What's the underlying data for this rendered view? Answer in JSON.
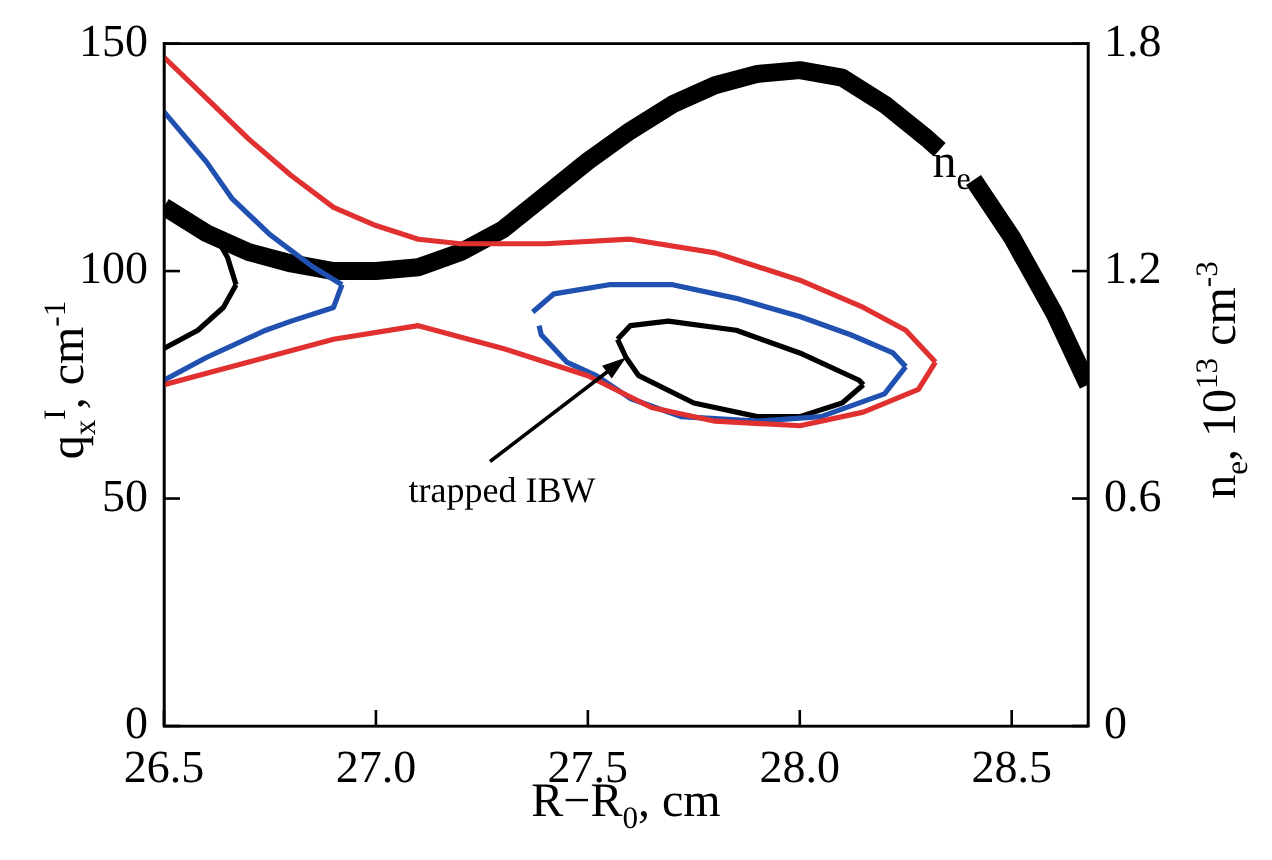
{
  "chart_data": {
    "type": "line",
    "xlabel": "R−R$_{0}$, cm",
    "ylabel": "q$_{x}$$^{I}$, cm$^{-1}$",
    "y2label": "n$_{e}$, 10$^{13}$ cm$^{-3}$",
    "xlim": [
      26.5,
      28.68
    ],
    "xticks": [
      26.5,
      {
        "value": 27,
        "label": "27.0"
      },
      27.5,
      {
        "value": 28,
        "label": "28.0"
      },
      28.5
    ],
    "ylim": [
      0,
      150
    ],
    "yticks": [
      0,
      50,
      100,
      150
    ],
    "y2lim": [
      0,
      1.8
    ],
    "y2ticks": [
      0,
      0.6,
      1.2,
      1.8
    ],
    "grid": false,
    "legend": false,
    "marker": "none",
    "line_style": "solid",
    "annotations": [
      {
        "text": "trapped IBW",
        "x": 27.59,
        "y": 81
      }
    ],
    "series": [
      {
        "color": "#e03030",
        "x": [
          26.5,
          26.6,
          26.7,
          26.8,
          26.9,
          27.0,
          27.1,
          27.2,
          27.4,
          27.6,
          27.8,
          28.0,
          28.15,
          28.25,
          28.32
        ],
        "values": [
          147,
          138,
          129,
          121,
          114,
          110,
          107,
          106,
          106,
          107,
          104,
          98,
          92,
          87,
          80
        ]
      },
      {
        "color": "#e03030",
        "x": [
          26.5,
          26.7,
          26.9,
          27.1,
          27.3,
          27.5,
          27.65,
          27.8,
          28.0,
          28.15,
          28.28,
          28.32
        ],
        "values": [
          75,
          80,
          85,
          88,
          83,
          77,
          70,
          67,
          66,
          69,
          74,
          80
        ]
      },
      {
        "color": "#2050b0",
        "x": [
          26.5,
          26.6,
          26.66,
          26.75,
          26.85,
          26.92
        ],
        "values": [
          135,
          124,
          116,
          108,
          101,
          97
        ]
      },
      {
        "color": "#2050b0",
        "x": [
          26.5,
          26.6,
          26.74,
          26.8,
          26.9,
          26.92
        ],
        "values": [
          76,
          81,
          87,
          89,
          92,
          97
        ]
      },
      {
        "color": "#2050b0",
        "x": [
          27.37,
          27.42,
          27.55,
          27.7,
          27.85,
          28.0,
          28.12,
          28.22,
          28.25
        ],
        "values": [
          91,
          95,
          97,
          97,
          94,
          90,
          86,
          82,
          79
        ]
      },
      {
        "color": "#2050b0",
        "x": [
          27.385,
          27.39,
          27.45,
          27.52,
          27.6,
          27.72,
          27.9,
          28.05,
          28.2,
          28.25
        ],
        "values": [
          88,
          86,
          80,
          77,
          72,
          68,
          67,
          68,
          73,
          79
        ]
      },
      {
        "color": "#000000",
        "x": [
          26.5,
          26.58,
          26.64,
          26.67
        ],
        "values": [
          83,
          87,
          92,
          97
        ]
      },
      {
        "color": "#000000",
        "x": [
          26.62,
          26.65,
          26.67
        ],
        "values": [
          108,
          103,
          97
        ]
      },
      {
        "color": "#000000",
        "x": [
          27.57,
          27.6,
          27.69,
          27.85,
          28.0,
          28.14,
          28.15
        ],
        "values": [
          85,
          88,
          89,
          87,
          82,
          76,
          75
        ]
      },
      {
        "color": "#000000",
        "x": [
          27.57,
          27.59,
          27.62,
          27.75,
          27.9,
          28.0,
          28.1,
          28.15
        ],
        "values": [
          85,
          81,
          77,
          71,
          68,
          68,
          71,
          75
        ]
      },
      {
        "name": "n$_{e}$",
        "color": "#000000",
        "axis": "y2",
        "x": [
          26.5,
          26.6,
          26.7,
          26.8,
          26.9,
          27.0,
          27.1,
          27.2,
          27.3,
          27.4,
          27.5,
          27.6,
          27.7,
          27.8,
          27.9,
          28.0,
          28.1,
          28.2,
          28.3,
          28.33,
          28.37,
          28.41,
          28.5,
          28.6,
          28.68
        ],
        "values": [
          1.37,
          1.3,
          1.25,
          1.22,
          1.2,
          1.2,
          1.21,
          1.25,
          1.31,
          1.4,
          1.49,
          1.57,
          1.64,
          1.69,
          1.72,
          1.73,
          1.71,
          1.64,
          1.55,
          1.52,
          null,
          1.44,
          1.29,
          1.09,
          0.9
        ]
      }
    ]
  }
}
